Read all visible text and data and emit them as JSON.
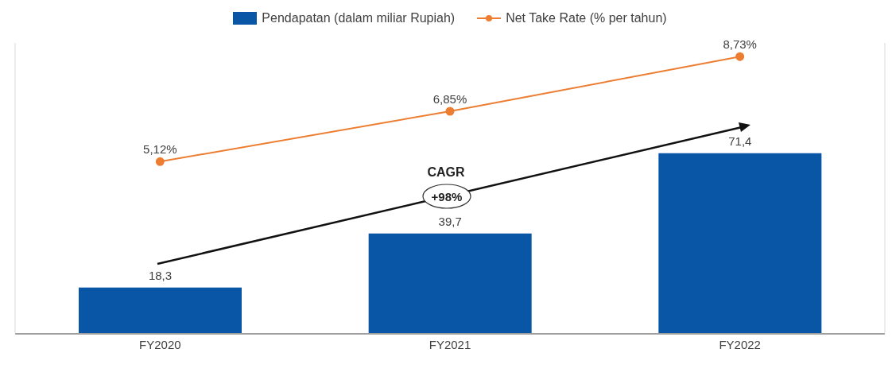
{
  "chart_data": {
    "type": "bar",
    "categories": [
      "FY2020",
      "FY2021",
      "FY2022"
    ],
    "series": [
      {
        "name": "Pendapatan (dalam miliar Rupiah)",
        "color": "#0a56a6",
        "values": [
          18.3,
          39.7,
          71.4
        ],
        "value_labels": [
          "18,3",
          "39,7",
          "71,4"
        ]
      },
      {
        "name": "Net Take Rate (% per tahun)",
        "type": "line",
        "axis": "y2",
        "color": "#ed7d31",
        "marker": "circle",
        "values": [
          5.12,
          6.85,
          8.73
        ],
        "value_labels": [
          "5,12%",
          "6,85%",
          "8,73%"
        ]
      }
    ],
    "ylim": [
      0,
      115
    ],
    "y2lim": [
      -0.8,
      9.2
    ],
    "tick_labels": "x",
    "legend": "top",
    "annotations": [
      "CAGR",
      "+98%"
    ]
  }
}
